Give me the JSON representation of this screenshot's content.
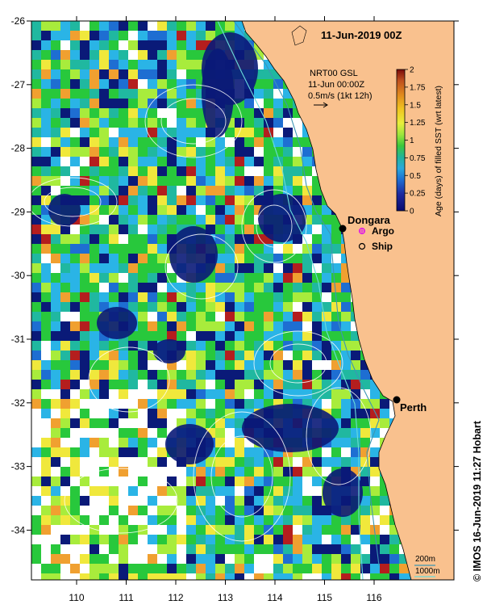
{
  "map": {
    "title": "11-Jun-2019 00Z",
    "product": "NRT00 GSL",
    "product_time": "11-Jun 00:00Z",
    "vector_scale": "0.5m/s (1kt 12h)",
    "credit": "© IMOS 16-Jun-2019 11:27 Hobart",
    "lon_ticks": [
      "110",
      "111",
      "112",
      "113",
      "114",
      "115",
      "116"
    ],
    "lat_ticks": [
      "-26",
      "-27",
      "-28",
      "-29",
      "-30",
      "-31",
      "-32",
      "-33",
      "-34"
    ],
    "places": [
      {
        "name": "Dongara"
      },
      {
        "name": "Perth"
      }
    ],
    "legend": {
      "argo": "Argo",
      "ship": "Ship"
    },
    "colorbar": {
      "label": "Age (days) of filled SST (wrt latest)",
      "ticks": [
        "2",
        "1.75",
        "1.5",
        "1.25",
        "1",
        "0.75",
        "0.5",
        "0.25",
        "0"
      ],
      "colors": [
        "#7a0a0a",
        "#c0501e",
        "#e08a1e",
        "#f0c420",
        "#e8ee3c",
        "#9ee63c",
        "#3cc83c",
        "#22b49a",
        "#2aa8dc",
        "#1e6ed2",
        "#1e2aa0",
        "#0a0a6e"
      ]
    },
    "bathymetry": {
      "label_200": "200m",
      "label_1000": "1000m"
    },
    "colors": {
      "land": "#f9c18e",
      "deep_blue": "#0a1a78",
      "teal": "#20b8a0",
      "sky": "#2ab4e6",
      "green": "#28c83c",
      "lime": "#a8ec3c",
      "yellow": "#f0e83c",
      "orange": "#f0a030",
      "red": "#b41e1e",
      "contour": "#ffffff",
      "iso200": "#3c96b4",
      "iso1000": "#6adcdc",
      "argo": "#e020e0"
    }
  }
}
